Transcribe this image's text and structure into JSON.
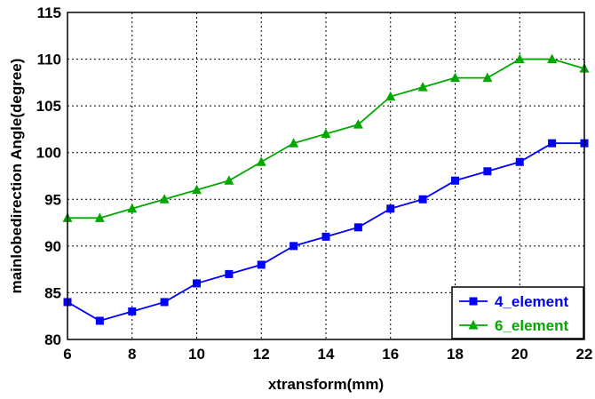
{
  "chart_data": {
    "type": "line",
    "title": "",
    "xlabel": "xtransform(mm)",
    "ylabel": "mainlobedirection Angle(degree)",
    "xlim": [
      6,
      22
    ],
    "ylim": [
      80,
      115
    ],
    "xticks": [
      6,
      8,
      10,
      12,
      14,
      16,
      18,
      20,
      22
    ],
    "yticks": [
      80,
      85,
      90,
      95,
      100,
      105,
      110,
      115
    ],
    "grid": true,
    "grid_style": "dotted",
    "legend_position": "bottom-right",
    "x": [
      6,
      7,
      8,
      9,
      10,
      11,
      12,
      13,
      14,
      15,
      16,
      17,
      18,
      19,
      20,
      21,
      22
    ],
    "series": [
      {
        "name": "4_element",
        "color": "#0000ff",
        "marker": "square",
        "values": [
          84,
          82,
          83,
          84,
          86,
          87,
          88,
          90,
          91,
          92,
          94,
          95,
          97,
          98,
          99,
          101,
          101
        ]
      },
      {
        "name": "6_element",
        "color": "#00a800",
        "marker": "triangle",
        "values": [
          93,
          93,
          94,
          95,
          96,
          97,
          99,
          101,
          102,
          103,
          106,
          107,
          108,
          108,
          110,
          110,
          109
        ]
      }
    ]
  }
}
